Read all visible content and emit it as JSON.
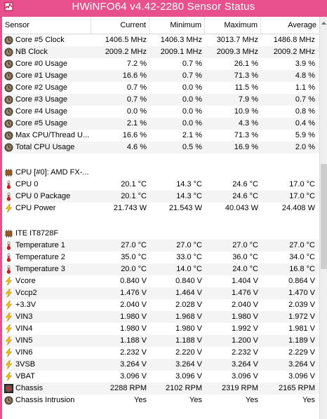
{
  "window": {
    "title": "HWiNFO64 v4.42-2280 Sensor Status"
  },
  "columns": {
    "sensor": "Sensor",
    "current": "Current",
    "minimum": "Minimum",
    "maximum": "Maximum",
    "average": "Average"
  },
  "rows": [
    {
      "kind": "item",
      "icon": "clock-icon",
      "name": "Core #5 Clock",
      "current": "1406.5 MHz",
      "minimum": "1406.3 MHz",
      "maximum": "3013.7 MHz",
      "average": "1486.8 MHz"
    },
    {
      "kind": "item",
      "icon": "clock-icon",
      "name": "NB Clock",
      "current": "2009.2 MHz",
      "minimum": "2009.1 MHz",
      "maximum": "2009.3 MHz",
      "average": "2009.2 MHz"
    },
    {
      "kind": "item",
      "icon": "clock-icon",
      "name": "Core #0 Usage",
      "current": "7.2 %",
      "minimum": "0.7 %",
      "maximum": "26.1 %",
      "average": "3.9 %"
    },
    {
      "kind": "item",
      "icon": "clock-icon",
      "name": "Core #1 Usage",
      "current": "16.6 %",
      "minimum": "0.7 %",
      "maximum": "71.3 %",
      "average": "4.8 %"
    },
    {
      "kind": "item",
      "icon": "clock-icon",
      "name": "Core #2 Usage",
      "current": "0.7 %",
      "minimum": "0.0 %",
      "maximum": "11.5 %",
      "average": "1.1 %"
    },
    {
      "kind": "item",
      "icon": "clock-icon",
      "name": "Core #3 Usage",
      "current": "0.7 %",
      "minimum": "0.0 %",
      "maximum": "7.9 %",
      "average": "0.7 %"
    },
    {
      "kind": "item",
      "icon": "clock-icon",
      "name": "Core #4 Usage",
      "current": "0.0 %",
      "minimum": "0.0 %",
      "maximum": "10.9 %",
      "average": "0.8 %"
    },
    {
      "kind": "item",
      "icon": "clock-icon",
      "name": "Core #5 Usage",
      "current": "2.1 %",
      "minimum": "0.0 %",
      "maximum": "4.3 %",
      "average": "0.4 %"
    },
    {
      "kind": "item",
      "icon": "clock-icon",
      "name": "Max CPU/Thread U...",
      "current": "16.6 %",
      "minimum": "2.1 %",
      "maximum": "71.3 %",
      "average": "5.9 %"
    },
    {
      "kind": "item",
      "icon": "clock-icon",
      "name": "Total CPU Usage",
      "current": "4.6 %",
      "minimum": "0.5 %",
      "maximum": "16.9 %",
      "average": "2.0 %"
    },
    {
      "kind": "gap"
    },
    {
      "kind": "group",
      "icon": "chip-icon",
      "name": "CPU [#0]: AMD FX-..."
    },
    {
      "kind": "item",
      "icon": "thermometer-icon",
      "name": "CPU 0",
      "current": "20.1 °C",
      "minimum": "14.3 °C",
      "maximum": "24.6 °C",
      "average": "17.0 °C"
    },
    {
      "kind": "item",
      "icon": "thermometer-icon",
      "name": "CPU 0 Package",
      "current": "20.1 °C",
      "minimum": "14.3 °C",
      "maximum": "24.6 °C",
      "average": "17.0 °C"
    },
    {
      "kind": "item",
      "icon": "lightning-icon",
      "name": "CPU Power",
      "current": "21.743 W",
      "minimum": "21.543 W",
      "maximum": "40.043 W",
      "average": "24.408 W"
    },
    {
      "kind": "gap"
    },
    {
      "kind": "group",
      "icon": "chip-icon",
      "name": "ITE IT8728F"
    },
    {
      "kind": "item",
      "icon": "thermometer-icon",
      "name": "Temperature 1",
      "current": "27.0 °C",
      "minimum": "27.0 °C",
      "maximum": "27.0 °C",
      "average": "27.0 °C"
    },
    {
      "kind": "item",
      "icon": "thermometer-icon",
      "name": "Temperature 2",
      "current": "35.0 °C",
      "minimum": "33.0 °C",
      "maximum": "36.0 °C",
      "average": "34.0 °C"
    },
    {
      "kind": "item",
      "icon": "thermometer-icon",
      "name": "Temperature 3",
      "current": "20.0 °C",
      "minimum": "14.0 °C",
      "maximum": "24.0 °C",
      "average": "16.8 °C"
    },
    {
      "kind": "item",
      "icon": "lightning-icon",
      "name": "Vcore",
      "current": "0.840 V",
      "minimum": "0.840 V",
      "maximum": "1.404 V",
      "average": "0.864 V"
    },
    {
      "kind": "item",
      "icon": "lightning-icon",
      "name": "Vccp2",
      "current": "1.476 V",
      "minimum": "1.464 V",
      "maximum": "1.476 V",
      "average": "1.470 V"
    },
    {
      "kind": "item",
      "icon": "lightning-icon",
      "name": "+3.3V",
      "current": "2.040 V",
      "minimum": "2.028 V",
      "maximum": "2.040 V",
      "average": "2.039 V"
    },
    {
      "kind": "item",
      "icon": "lightning-icon",
      "name": "VIN3",
      "current": "1.980 V",
      "minimum": "1.968 V",
      "maximum": "1.980 V",
      "average": "1.972 V"
    },
    {
      "kind": "item",
      "icon": "lightning-icon",
      "name": "VIN4",
      "current": "1.980 V",
      "minimum": "1.980 V",
      "maximum": "1.992 V",
      "average": "1.981 V"
    },
    {
      "kind": "item",
      "icon": "lightning-icon",
      "name": "VIN5",
      "current": "1.188 V",
      "minimum": "1.188 V",
      "maximum": "1.200 V",
      "average": "1.189 V"
    },
    {
      "kind": "item",
      "icon": "lightning-icon",
      "name": "VIN6",
      "current": "2.232 V",
      "minimum": "2.220 V",
      "maximum": "2.232 V",
      "average": "2.229 V"
    },
    {
      "kind": "item",
      "icon": "lightning-icon",
      "name": "3VSB",
      "current": "3.264 V",
      "minimum": "3.264 V",
      "maximum": "3.264 V",
      "average": "3.264 V"
    },
    {
      "kind": "item",
      "icon": "lightning-icon",
      "name": "VBAT",
      "current": "3.096 V",
      "minimum": "3.096 V",
      "maximum": "3.096 V",
      "average": "3.096 V"
    },
    {
      "kind": "item",
      "icon": "fan-icon",
      "name": "Chassis",
      "current": "2288 RPM",
      "minimum": "2102 RPM",
      "maximum": "2319 RPM",
      "average": "2165 RPM"
    },
    {
      "kind": "item",
      "icon": "clock-icon",
      "name": "Chassis Intrusion",
      "current": "Yes",
      "minimum": "Yes",
      "maximum": "Yes",
      "average": "Yes"
    }
  ],
  "colors": {
    "titlebar": "#e8518d",
    "clock": "#6b5a46",
    "thermometer": "#d02020",
    "lightning": "#f2c21a",
    "chip": "#9a5a2a"
  }
}
